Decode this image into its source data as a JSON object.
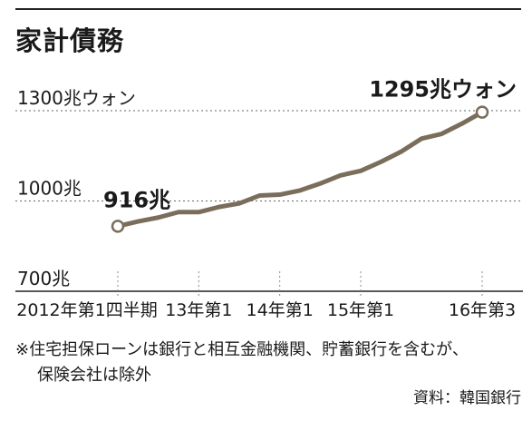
{
  "title": "家計債務",
  "note": {
    "line1": "※住宅担保ローンは銀行と相互金融機関、貯蓄銀行を含むが、",
    "line2": "保険会社は除外"
  },
  "source": "資料：韓国銀行",
  "colors": {
    "line": "#7a6d5b",
    "grid": "#666666",
    "text": "#1a1a1a"
  },
  "chart_data": {
    "type": "line",
    "ylim": [
      700,
      1300
    ],
    "yticks": [
      {
        "value": 1300,
        "label": "1300兆ウォン"
      },
      {
        "value": 1000,
        "label": "1000兆"
      },
      {
        "value": 700,
        "label": "700兆"
      }
    ],
    "xticks": [
      "2012年第1四半期",
      "13年第1",
      "14年第1",
      "15年第1",
      "16年第3"
    ],
    "xtick_index": [
      0,
      4,
      8,
      12,
      18
    ],
    "values": [
      916,
      932,
      945,
      963,
      963,
      980,
      992,
      1018,
      1021,
      1035,
      1058,
      1085,
      1100,
      1130,
      1164,
      1207,
      1223,
      1257,
      1295
    ],
    "annotations": [
      {
        "index": 0,
        "label": "916兆"
      },
      {
        "index": 18,
        "label": "1295兆ウォン"
      }
    ],
    "grid": true,
    "legend": "none"
  }
}
